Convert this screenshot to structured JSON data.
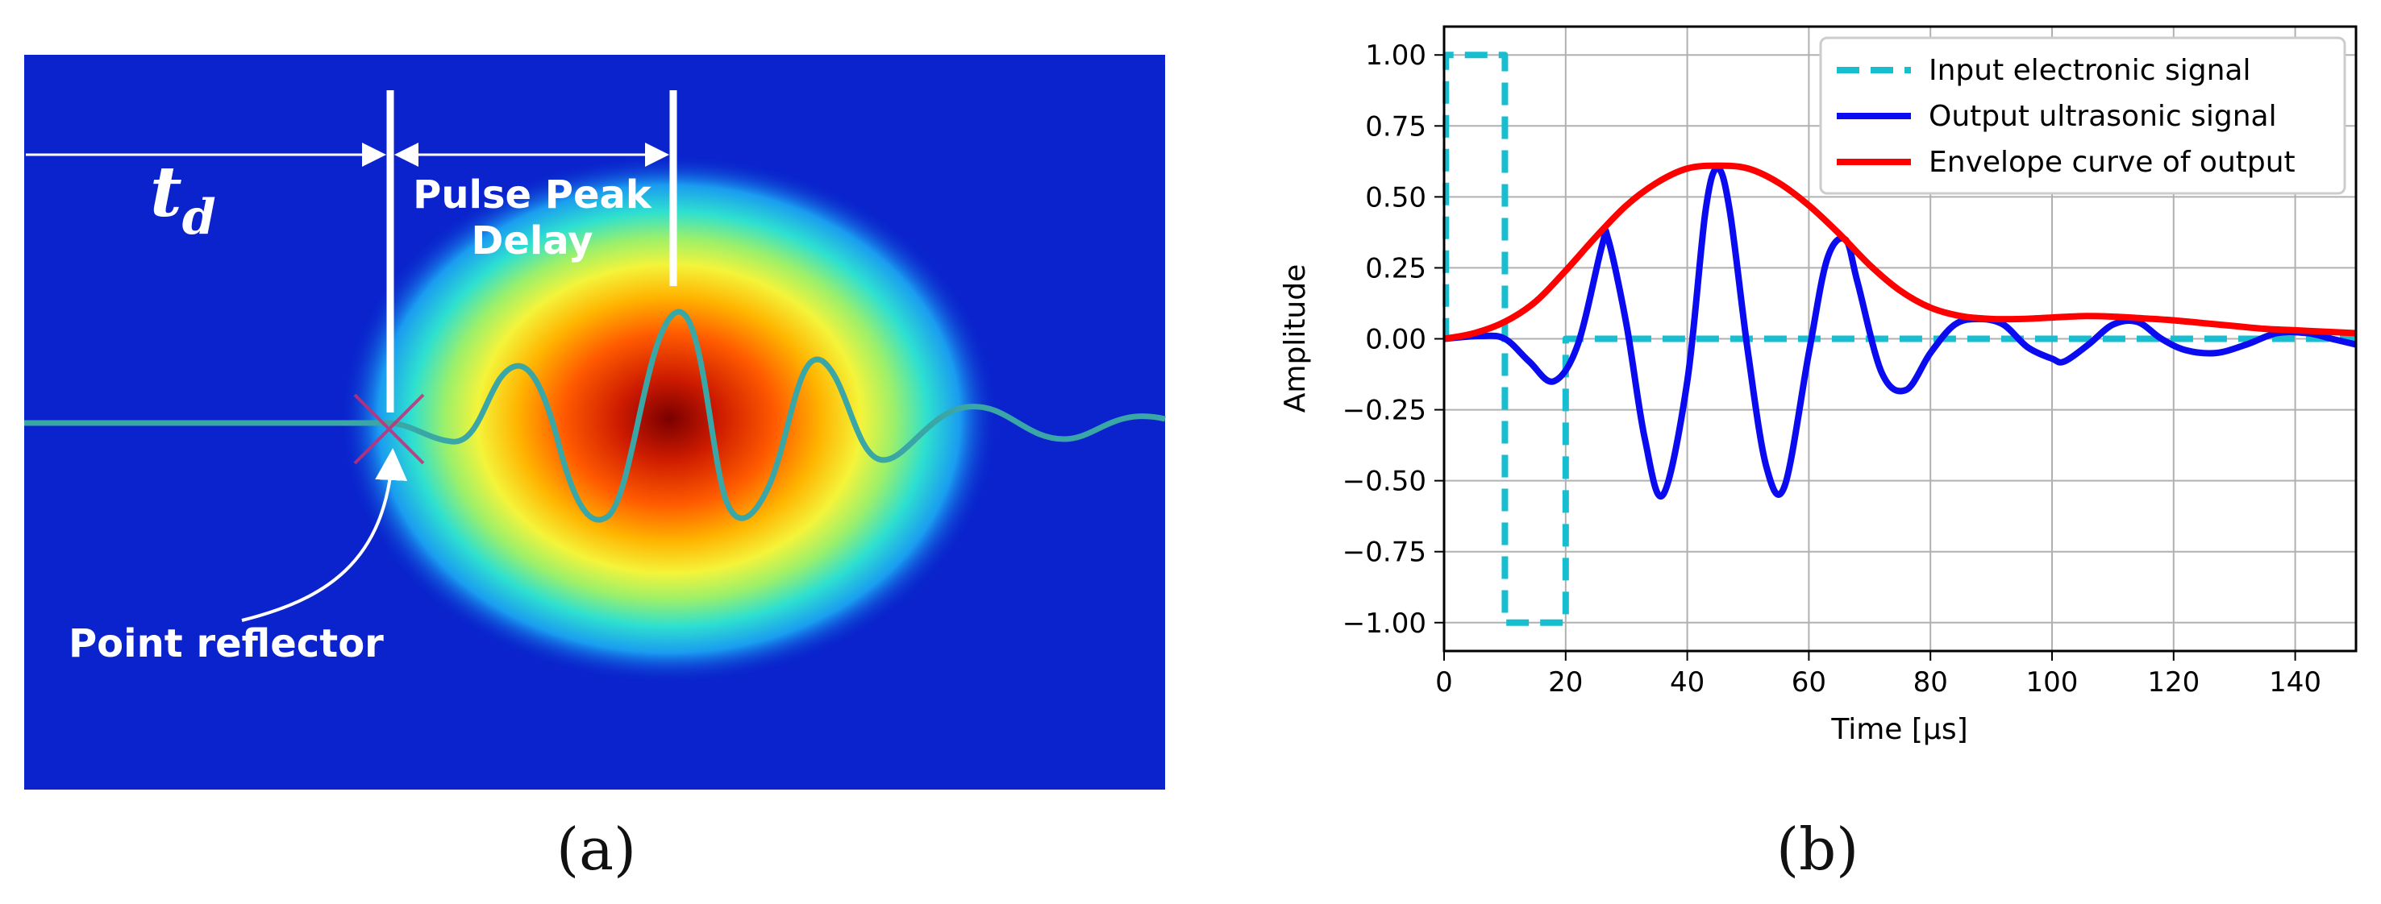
{
  "panels": {
    "a": {
      "label": "(a)",
      "annotations": {
        "td_main": "t",
        "td_sub": "d",
        "pulse_line1": "Pulse Peak",
        "pulse_line2": "Delay",
        "reflector": "Point reflector"
      },
      "colors": {
        "background": "#0a1fc8",
        "trace": "#3aa6a6",
        "text": "#ffffff",
        "marker": "#c0307a"
      }
    },
    "b": {
      "label": "(b)"
    }
  },
  "chart_data": {
    "type": "line",
    "title": "",
    "xlabel": "Time [μs]",
    "ylabel": "Amplitude",
    "xlim": [
      0,
      150
    ],
    "ylim": [
      -1.1,
      1.1
    ],
    "xticks": [
      0,
      20,
      40,
      60,
      80,
      100,
      120,
      140
    ],
    "yticks": [
      1.0,
      0.75,
      0.5,
      0.25,
      0.0,
      -0.25,
      -0.5,
      -0.75,
      -1.0
    ],
    "ytick_labels": [
      "1.00",
      "0.75",
      "0.50",
      "0.25",
      "0.00",
      "−0.25",
      "−0.50",
      "−0.75",
      "−1.00"
    ],
    "grid": true,
    "legend_position": "top-right",
    "series": [
      {
        "name": "Input electronic signal",
        "color": "#17becf",
        "style": "dashed",
        "x": [
          0,
          0.3,
          0.3,
          10,
          10,
          20,
          20,
          150
        ],
        "y": [
          0,
          0,
          1,
          1,
          -1,
          -1,
          0,
          0
        ]
      },
      {
        "name": "Output ultrasonic signal",
        "color": "#0b0bef",
        "style": "solid",
        "x": [
          0,
          6,
          10,
          14,
          18,
          22,
          26,
          27,
          30,
          33,
          36,
          40,
          43,
          45,
          47,
          50,
          53,
          56,
          60,
          63,
          66,
          68,
          72,
          76,
          80,
          84,
          88,
          92,
          96,
          100,
          102,
          106,
          110,
          114,
          118,
          122,
          127,
          132,
          137,
          142,
          146,
          150
        ],
        "y": [
          0,
          0.01,
          0.0,
          -0.08,
          -0.15,
          -0.02,
          0.33,
          0.35,
          0.05,
          -0.35,
          -0.55,
          -0.15,
          0.45,
          0.6,
          0.45,
          -0.05,
          -0.45,
          -0.52,
          -0.05,
          0.28,
          0.35,
          0.2,
          -0.12,
          -0.18,
          -0.05,
          0.05,
          0.07,
          0.05,
          -0.03,
          -0.07,
          -0.08,
          -0.02,
          0.05,
          0.06,
          0.0,
          -0.04,
          -0.05,
          -0.02,
          0.02,
          0.02,
          0.0,
          -0.02
        ]
      },
      {
        "name": "Envelope curve of output",
        "color": "#ff0000",
        "style": "solid",
        "x": [
          0,
          5,
          10,
          15,
          20,
          25,
          30,
          35,
          40,
          45,
          50,
          55,
          60,
          65,
          70,
          75,
          80,
          85,
          90,
          95,
          100,
          105,
          110,
          115,
          120,
          125,
          130,
          135,
          140,
          145,
          150
        ],
        "y": [
          0.0,
          0.02,
          0.06,
          0.13,
          0.24,
          0.36,
          0.47,
          0.55,
          0.6,
          0.61,
          0.6,
          0.55,
          0.47,
          0.37,
          0.26,
          0.17,
          0.11,
          0.08,
          0.07,
          0.07,
          0.075,
          0.08,
          0.078,
          0.072,
          0.065,
          0.055,
          0.045,
          0.035,
          0.03,
          0.025,
          0.02
        ]
      }
    ]
  }
}
